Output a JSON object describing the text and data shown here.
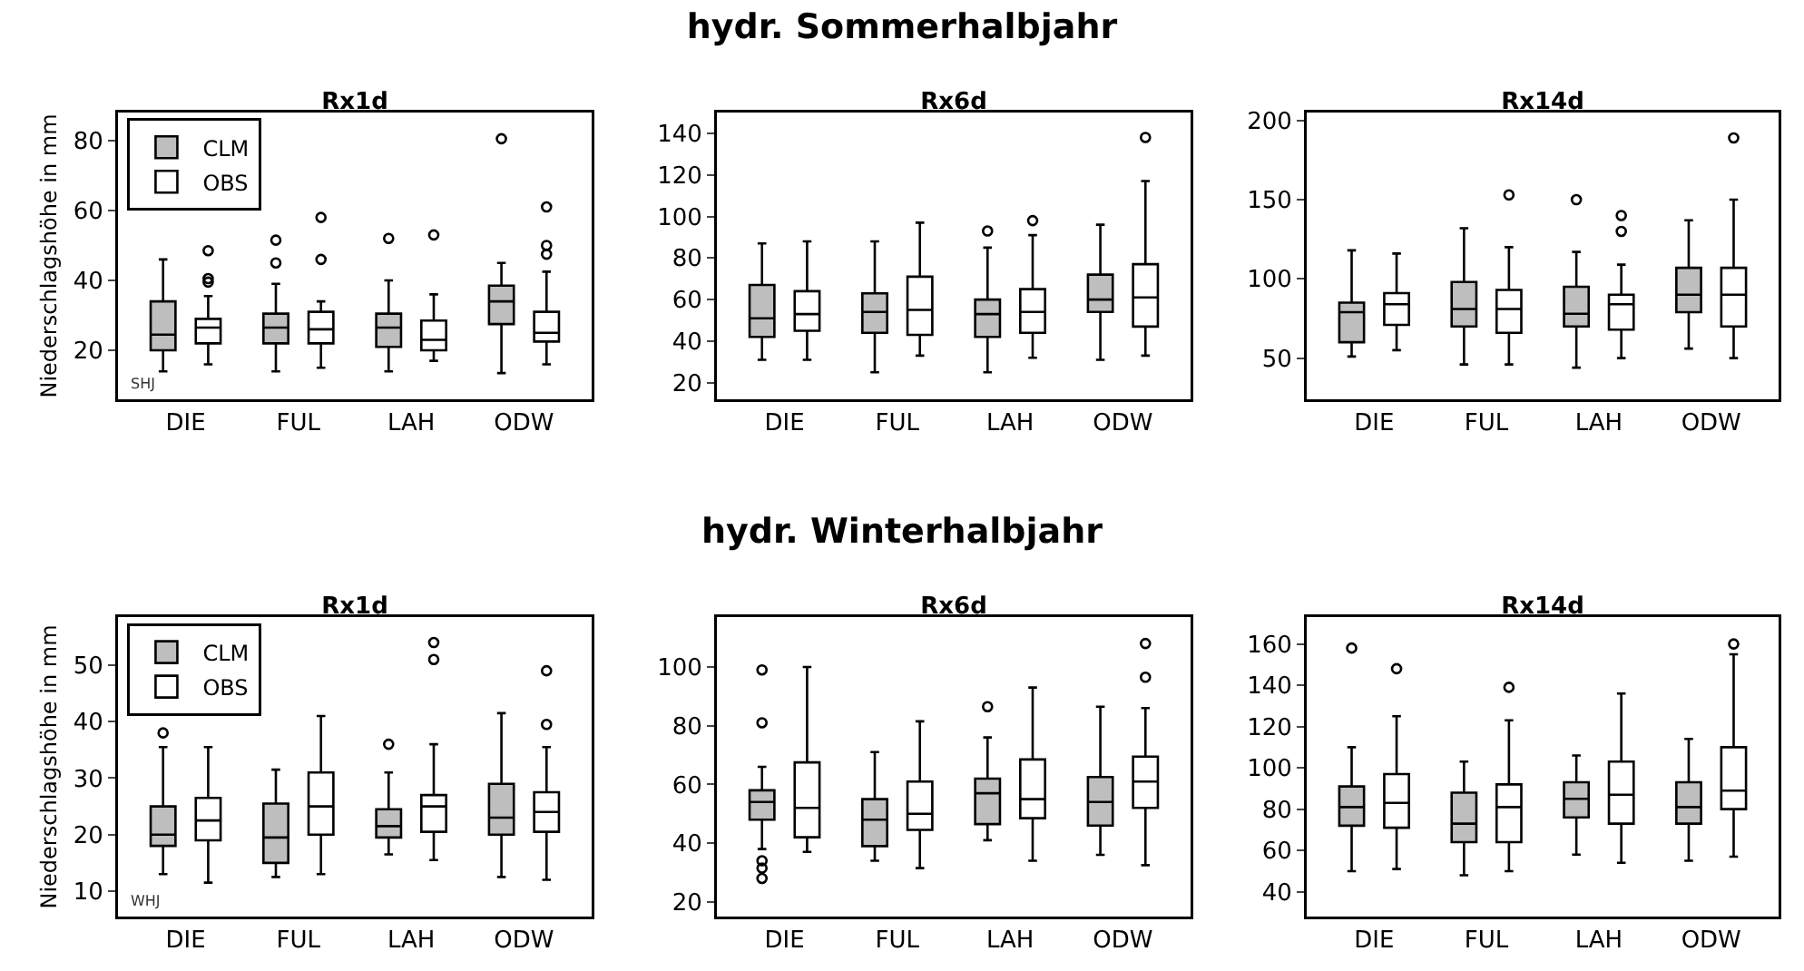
{
  "chart_data": [
    {
      "type": "box",
      "title": "Rx1d",
      "ylabel": "Niederschlagshöhe in mm",
      "categories": [
        "DIE",
        "FUL",
        "LAH",
        "ODW"
      ],
      "ylim": [
        6,
        88
      ],
      "yticks": [
        20,
        40,
        60,
        80
      ],
      "legend": "top left",
      "annotations": [
        "SHJ"
      ],
      "series": [
        {
          "name": "CLM",
          "color": "#bebebe",
          "boxes": [
            {
              "low": 14,
              "q1": 20,
              "median": 24.5,
              "q3": 34,
              "high": 46
            },
            {
              "low": 14,
              "q1": 22,
              "median": 26.5,
              "q3": 30.5,
              "high": 39,
              "outliers": [
                45,
                51.5
              ]
            },
            {
              "low": 14,
              "q1": 21,
              "median": 26.5,
              "q3": 30.5,
              "high": 40,
              "outliers": [
                52
              ]
            },
            {
              "low": 13.5,
              "q1": 27.5,
              "median": 34,
              "q3": 38.5,
              "high": 45,
              "outliers": [
                80.5
              ]
            }
          ]
        },
        {
          "name": "OBS",
          "color": "#ffffff",
          "boxes": [
            {
              "low": 16,
              "q1": 22,
              "median": 26.5,
              "q3": 29,
              "high": 35.5,
              "outliers": [
                39.5,
                40.5,
                48.5
              ]
            },
            {
              "low": 15,
              "q1": 22,
              "median": 26,
              "q3": 31,
              "high": 34,
              "outliers": [
                46,
                58
              ]
            },
            {
              "low": 17,
              "q1": 20,
              "median": 23,
              "q3": 28.5,
              "high": 36,
              "outliers": [
                53
              ]
            },
            {
              "low": 16,
              "q1": 22.5,
              "median": 25,
              "q3": 31,
              "high": 42.5,
              "outliers": [
                47.5,
                50,
                61
              ]
            }
          ]
        }
      ]
    },
    {
      "type": "box",
      "title": "Rx6d",
      "subtitle": "hydr. Sommerhalbjahr",
      "categories": [
        "DIE",
        "FUL",
        "LAH",
        "ODW"
      ],
      "ylim": [
        12,
        150
      ],
      "yticks": [
        20,
        40,
        60,
        80,
        100,
        120,
        140
      ],
      "series": [
        {
          "color": "#bebebe",
          "boxes": [
            {
              "low": 31,
              "q1": 42,
              "median": 51,
              "q3": 67,
              "high": 87
            },
            {
              "low": 25,
              "q1": 44,
              "median": 54,
              "q3": 63,
              "high": 88
            },
            {
              "low": 25,
              "q1": 42,
              "median": 53,
              "q3": 60,
              "high": 85,
              "outliers": [
                93
              ]
            },
            {
              "low": 31,
              "q1": 54,
              "median": 60,
              "q3": 72,
              "high": 96
            }
          ]
        },
        {
          "color": "#ffffff",
          "boxes": [
            {
              "low": 31,
              "q1": 45,
              "median": 53,
              "q3": 64,
              "high": 88
            },
            {
              "low": 33,
              "q1": 43,
              "median": 55,
              "q3": 71,
              "high": 97
            },
            {
              "low": 32,
              "q1": 44,
              "median": 54,
              "q3": 65,
              "high": 91,
              "outliers": [
                98
              ]
            },
            {
              "low": 33,
              "q1": 47,
              "median": 61,
              "q3": 77,
              "high": 117,
              "outliers": [
                138
              ]
            }
          ]
        }
      ]
    },
    {
      "type": "box",
      "title": "Rx14d",
      "categories": [
        "DIE",
        "FUL",
        "LAH",
        "ODW"
      ],
      "ylim": [
        24,
        205
      ],
      "yticks": [
        50,
        100,
        150,
        200
      ],
      "series": [
        {
          "color": "#bebebe",
          "boxes": [
            {
              "low": 51,
              "q1": 60,
              "median": 79,
              "q3": 85,
              "high": 118
            },
            {
              "low": 46,
              "q1": 70,
              "median": 81,
              "q3": 98,
              "high": 132
            },
            {
              "low": 44,
              "q1": 70,
              "median": 78,
              "q3": 95,
              "high": 117,
              "outliers": [
                150
              ]
            },
            {
              "low": 56,
              "q1": 79,
              "median": 90,
              "q3": 107,
              "high": 137
            }
          ]
        },
        {
          "color": "#ffffff",
          "boxes": [
            {
              "low": 55,
              "q1": 71,
              "median": 84,
              "q3": 91,
              "high": 116
            },
            {
              "low": 46,
              "q1": 66,
              "median": 81,
              "q3": 93,
              "high": 120,
              "outliers": [
                153
              ]
            },
            {
              "low": 50,
              "q1": 68,
              "median": 84,
              "q3": 90,
              "high": 109,
              "outliers": [
                130,
                140
              ]
            },
            {
              "low": 50,
              "q1": 70,
              "median": 90,
              "q3": 107,
              "high": 150,
              "outliers": [
                189
              ]
            }
          ]
        }
      ]
    },
    {
      "type": "box",
      "title": "Rx1d",
      "ylabel": "Niederschlagshöhe in mm",
      "categories": [
        "DIE",
        "FUL",
        "LAH",
        "ODW"
      ],
      "ylim": [
        5.5,
        58.5
      ],
      "yticks": [
        10,
        20,
        30,
        40,
        50
      ],
      "legend": "top left",
      "annotations": [
        "WHJ"
      ],
      "series": [
        {
          "name": "CLM",
          "color": "#bebebe",
          "boxes": [
            {
              "low": 13,
              "q1": 18,
              "median": 20,
              "q3": 25,
              "high": 35.5,
              "outliers": [
                38
              ]
            },
            {
              "low": 12.5,
              "q1": 15,
              "median": 19.5,
              "q3": 25.5,
              "high": 31.5
            },
            {
              "low": 16.5,
              "q1": 19.5,
              "median": 21.5,
              "q3": 24.5,
              "high": 31,
              "outliers": [
                36
              ]
            },
            {
              "low": 12.5,
              "q1": 20,
              "median": 23,
              "q3": 29,
              "high": 41.5
            }
          ]
        },
        {
          "name": "OBS",
          "color": "#ffffff",
          "boxes": [
            {
              "low": 11.5,
              "q1": 19,
              "median": 22.5,
              "q3": 26.5,
              "high": 35.5
            },
            {
              "low": 13,
              "q1": 20,
              "median": 25,
              "q3": 31,
              "high": 41
            },
            {
              "low": 15.5,
              "q1": 20.5,
              "median": 25,
              "q3": 27,
              "high": 36,
              "outliers": [
                51,
                54
              ]
            },
            {
              "low": 12,
              "q1": 20.5,
              "median": 24,
              "q3": 27.5,
              "high": 35.5,
              "outliers": [
                39.5,
                49
              ]
            }
          ]
        }
      ]
    },
    {
      "type": "box",
      "title": "Rx6d",
      "subtitle": "hydr. Winterhalbjahr",
      "categories": [
        "DIE",
        "FUL",
        "LAH",
        "ODW"
      ],
      "ylim": [
        15,
        117
      ],
      "yticks": [
        20,
        40,
        60,
        80,
        100
      ],
      "series": [
        {
          "color": "#bebebe",
          "boxes": [
            {
              "low": 38,
              "q1": 48,
              "median": 54,
              "q3": 58,
              "high": 66,
              "outliers": [
                28,
                31.5,
                34,
                81,
                99
              ]
            },
            {
              "low": 34,
              "q1": 39,
              "median": 48,
              "q3": 55,
              "high": 71
            },
            {
              "low": 41,
              "q1": 46.5,
              "median": 57,
              "q3": 62,
              "high": 76,
              "outliers": [
                86.5
              ]
            },
            {
              "low": 36,
              "q1": 46,
              "median": 54,
              "q3": 62.5,
              "high": 86.5
            }
          ]
        },
        {
          "color": "#ffffff",
          "boxes": [
            {
              "low": 37,
              "q1": 42,
              "median": 52,
              "q3": 67.5,
              "high": 100
            },
            {
              "low": 31.5,
              "q1": 44.5,
              "median": 50,
              "q3": 61,
              "high": 81.5
            },
            {
              "low": 34,
              "q1": 48.5,
              "median": 55,
              "q3": 68.5,
              "high": 93
            },
            {
              "low": 32.5,
              "q1": 52,
              "median": 61,
              "q3": 69.5,
              "high": 86,
              "outliers": [
                96.5,
                108
              ]
            }
          ]
        }
      ]
    },
    {
      "type": "box",
      "title": "Rx14d",
      "categories": [
        "DIE",
        "FUL",
        "LAH",
        "ODW"
      ],
      "ylim": [
        28,
        173
      ],
      "yticks": [
        40,
        60,
        80,
        100,
        120,
        140,
        160
      ],
      "series": [
        {
          "color": "#bebebe",
          "boxes": [
            {
              "low": 50,
              "q1": 72,
              "median": 81,
              "q3": 91,
              "high": 110,
              "outliers": [
                158
              ]
            },
            {
              "low": 48,
              "q1": 64,
              "median": 73,
              "q3": 88,
              "high": 103
            },
            {
              "low": 58,
              "q1": 76,
              "median": 85,
              "q3": 93,
              "high": 106
            },
            {
              "low": 55,
              "q1": 73,
              "median": 81,
              "q3": 93,
              "high": 114
            }
          ]
        },
        {
          "color": "#ffffff",
          "boxes": [
            {
              "low": 51,
              "q1": 71,
              "median": 83,
              "q3": 97,
              "high": 125,
              "outliers": [
                148
              ]
            },
            {
              "low": 50,
              "q1": 64,
              "median": 81,
              "q3": 92,
              "high": 123,
              "outliers": [
                139
              ]
            },
            {
              "low": 54,
              "q1": 73,
              "median": 87,
              "q3": 103,
              "high": 136
            },
            {
              "low": 57,
              "q1": 80,
              "median": 89,
              "q3": 110,
              "high": 155,
              "outliers": [
                160
              ]
            }
          ]
        }
      ]
    }
  ]
}
